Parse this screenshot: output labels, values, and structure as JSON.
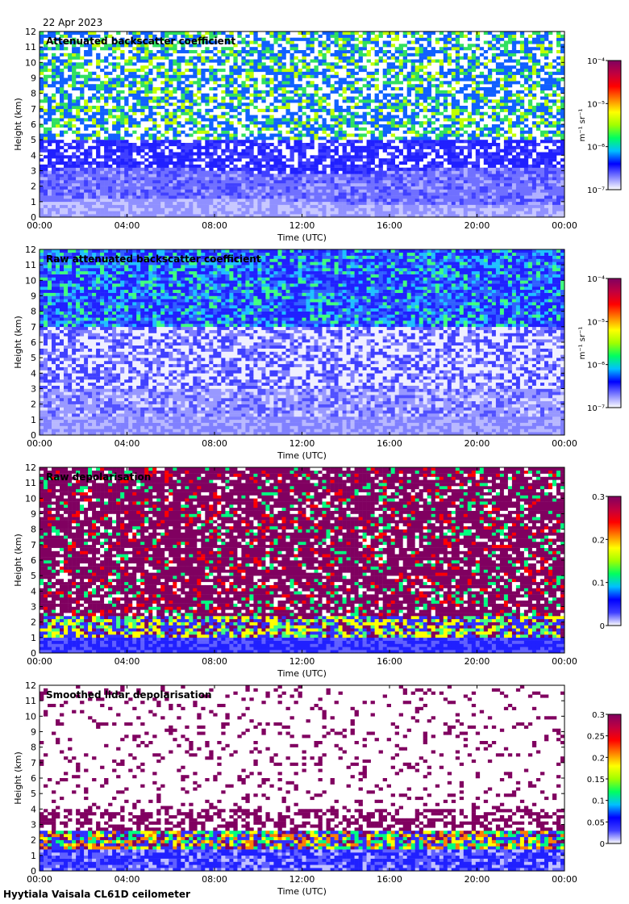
{
  "date": "22 Apr 2023",
  "footer": "Hyytiala Vaisala CL61D ceilometer",
  "colors": {
    "palette": [
      "#ffffff",
      "#c8c8ff",
      "#8080ff",
      "#2020ff",
      "#0000cc",
      "#00b4ff",
      "#00ff80",
      "#60ff00",
      "#ffff00",
      "#ff8000",
      "#ff0000",
      "#b00000",
      "#800060"
    ]
  },
  "chart_data": [
    {
      "type": "heatmap",
      "title": "Attenuated backscatter coefficient",
      "xlabel": "Time (UTC)",
      "ylabel": "Height (km)",
      "x_ticks": [
        "00:00",
        "04:00",
        "08:00",
        "12:00",
        "16:00",
        "20:00",
        "00:00"
      ],
      "y_ticks": [
        "0",
        "1",
        "2",
        "3",
        "4",
        "5",
        "6",
        "7",
        "8",
        "9",
        "10",
        "11",
        "12"
      ],
      "ylim": [
        0,
        12
      ],
      "colorbar": {
        "scale": "log",
        "unit": "m⁻¹ sr⁻¹",
        "tick_labels": [
          "10⁻⁷",
          "10⁻⁶",
          "10⁻⁵",
          "10⁻⁴"
        ]
      },
      "pattern": "backscatter"
    },
    {
      "type": "heatmap",
      "title": "Raw attenuated backscatter coefficient",
      "xlabel": "Time (UTC)",
      "ylabel": "Height (km)",
      "x_ticks": [
        "00:00",
        "04:00",
        "08:00",
        "12:00",
        "16:00",
        "20:00",
        "00:00"
      ],
      "y_ticks": [
        "0",
        "1",
        "2",
        "3",
        "4",
        "5",
        "6",
        "7",
        "8",
        "9",
        "10",
        "11",
        "12"
      ],
      "ylim": [
        0,
        12
      ],
      "colorbar": {
        "scale": "log",
        "unit": "m⁻¹ sr⁻¹",
        "tick_labels": [
          "10⁻⁷",
          "10⁻⁶",
          "10⁻⁵",
          "10⁻⁴"
        ]
      },
      "pattern": "raw_backscatter"
    },
    {
      "type": "heatmap",
      "title": "Raw depolarisation",
      "xlabel": "Time (UTC)",
      "ylabel": "Height (km)",
      "x_ticks": [
        "00:00",
        "04:00",
        "08:00",
        "12:00",
        "16:00",
        "20:00",
        "00:00"
      ],
      "y_ticks": [
        "0",
        "1",
        "2",
        "3",
        "4",
        "5",
        "6",
        "7",
        "8",
        "9",
        "10",
        "11",
        "12"
      ],
      "ylim": [
        0,
        12
      ],
      "colorbar": {
        "scale": "linear",
        "unit": "",
        "range": [
          0,
          0.3
        ],
        "tick_labels": [
          "0",
          "0.1",
          "0.2",
          "0.3"
        ]
      },
      "pattern": "raw_depol"
    },
    {
      "type": "heatmap",
      "title": "Smoothed lidar depolarisation",
      "xlabel": "Time (UTC)",
      "ylabel": "Height (km)",
      "x_ticks": [
        "00:00",
        "04:00",
        "08:00",
        "12:00",
        "16:00",
        "20:00",
        "00:00"
      ],
      "y_ticks": [
        "0",
        "1",
        "2",
        "3",
        "4",
        "5",
        "6",
        "7",
        "8",
        "9",
        "10",
        "11",
        "12"
      ],
      "ylim": [
        0,
        12
      ],
      "colorbar": {
        "scale": "linear",
        "unit": "",
        "range": [
          0,
          0.3
        ],
        "tick_labels": [
          "0",
          "0.05",
          "0.1",
          "0.15",
          "0.2",
          "0.25",
          "0.3"
        ]
      },
      "pattern": "smooth_depol"
    }
  ]
}
